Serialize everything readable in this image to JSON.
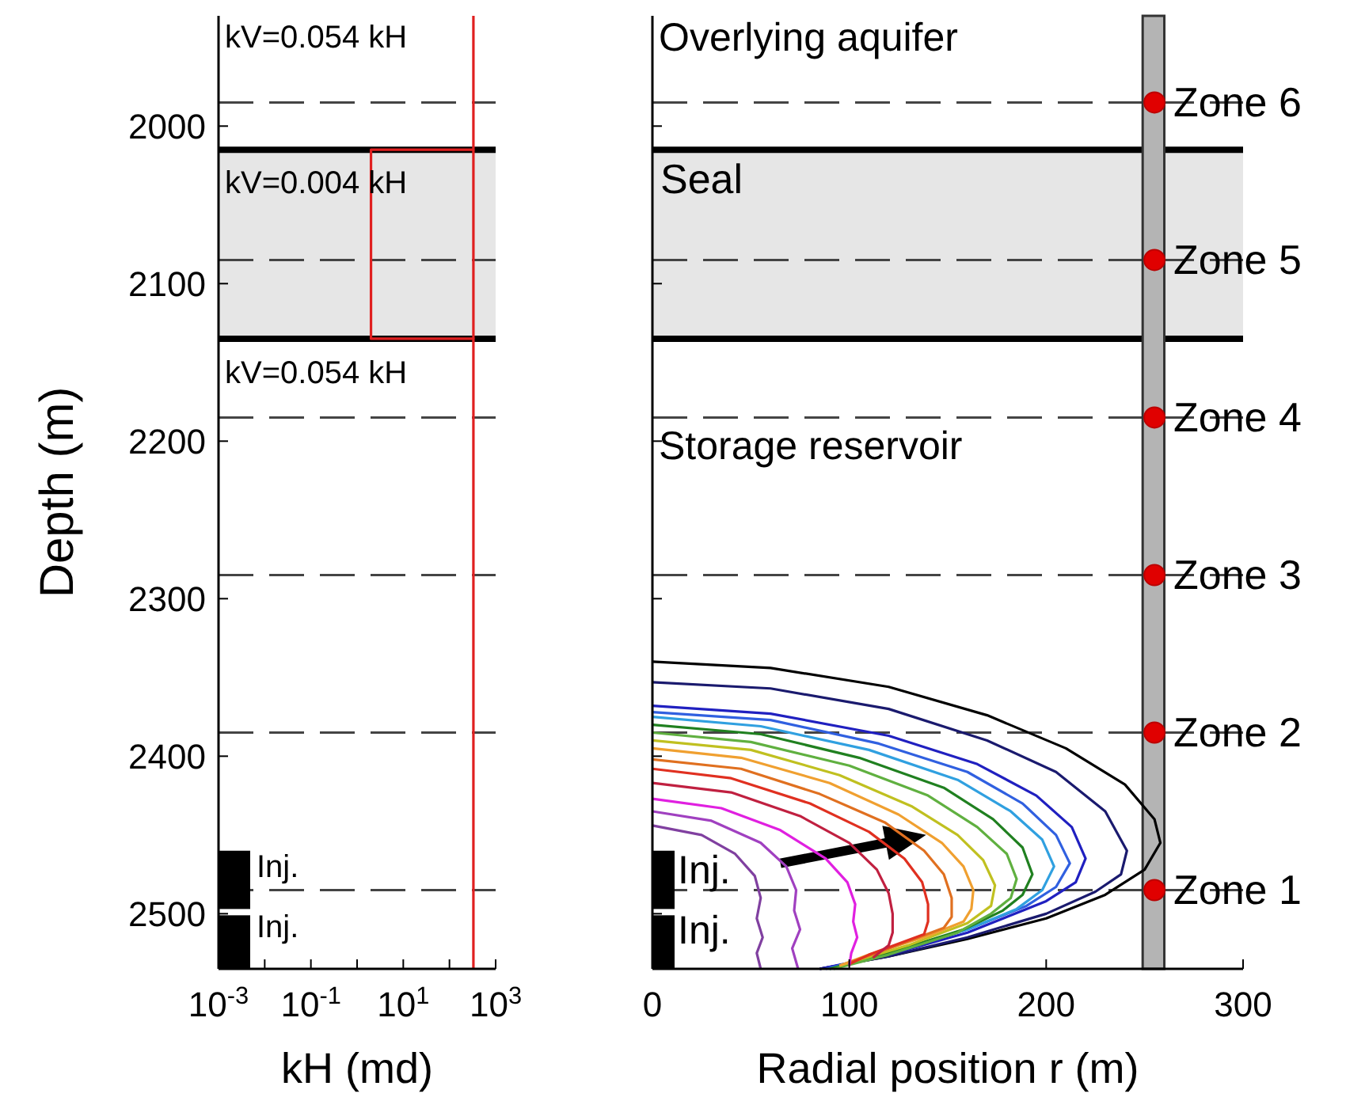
{
  "chart_data": [
    {
      "type": "line",
      "ylabel": "Depth (m)",
      "xlabel": "kH (md)",
      "log": "x",
      "grid": false,
      "xlim": [
        0.001,
        1000
      ],
      "xticks": [
        {
          "value": 0.001,
          "label": "10$^{-3}$"
        },
        {
          "value": 0.01,
          "label": null
        },
        {
          "value": 0.1,
          "label": "10$^{-1}$"
        },
        {
          "value": 1,
          "label": null
        },
        {
          "value": 10,
          "label": "10$^{1}$"
        },
        {
          "value": 100,
          "label": null
        },
        {
          "value": 1000,
          "label": "10$^{3}$"
        }
      ],
      "ylim": [
        2535,
        1930
      ],
      "yticks": [
        2000,
        2100,
        2200,
        2300,
        2400,
        2500
      ],
      "series": [
        {
          "color": "#e02020",
          "x": [
            330,
            330,
            2,
            2,
            330,
            330
          ],
          "values": [
            1930,
            2015,
            2015,
            2135,
            2135,
            2535
          ]
        },
        {
          "color": "#e02020",
          "x": [
            330,
            330
          ],
          "values": [
            2015,
            2135
          ]
        }
      ],
      "bands": [
        {
          "axis": "y",
          "from": 2015,
          "to": 2135,
          "color": "#e6e6e6"
        }
      ],
      "ref_lines": [
        {
          "axis": "y",
          "value": 2015,
          "color": "#000000",
          "line_style": "solid"
        },
        {
          "axis": "y",
          "value": 2135,
          "color": "#000000",
          "line_style": "solid"
        },
        {
          "axis": "y",
          "value": 1985,
          "line_style": "dashed"
        },
        {
          "axis": "y",
          "value": 2085,
          "line_style": "dashed"
        },
        {
          "axis": "y",
          "value": 2185,
          "line_style": "dashed"
        },
        {
          "axis": "y",
          "value": 2285,
          "line_style": "dashed"
        },
        {
          "axis": "y",
          "value": 2385,
          "line_style": "dashed"
        },
        {
          "axis": "y",
          "value": 2485,
          "line_style": "dashed"
        }
      ],
      "annotations": [
        "kV=0.054 kH",
        "kV=0.004 kH",
        "kV=0.054 kH",
        "Inj.",
        "Inj."
      ]
    },
    {
      "type": "line",
      "xlabel": "Radial position r (m)",
      "grid": false,
      "tick_labels": "x",
      "xlim": [
        0,
        300
      ],
      "xticks": [
        0,
        100,
        200,
        300
      ],
      "ylim": [
        2535,
        1930
      ],
      "yticks": [
        2000,
        2100,
        2200,
        2300,
        2400,
        2500
      ],
      "series": [
        {
          "color": "#000000",
          "x": [
            0,
            60,
            120,
            170,
            210,
            240,
            255,
            258,
            250,
            230,
            200,
            160,
            120,
            85
          ],
          "values": [
            2340,
            2344,
            2356,
            2374,
            2395,
            2418,
            2440,
            2455,
            2472,
            2488,
            2503,
            2516,
            2527,
            2535
          ]
        },
        {
          "color": "#1a1a6e",
          "x": [
            0,
            60,
            120,
            170,
            205,
            230,
            241,
            238,
            225,
            200,
            160,
            120,
            85
          ],
          "values": [
            2353,
            2357,
            2370,
            2390,
            2410,
            2435,
            2460,
            2475,
            2486,
            2500,
            2515,
            2527,
            2535
          ]
        },
        {
          "color": "#2020c0",
          "x": [
            0,
            60,
            120,
            165,
            195,
            213,
            220,
            215,
            200,
            160,
            120,
            85
          ],
          "values": [
            2368,
            2373,
            2387,
            2405,
            2425,
            2445,
            2465,
            2480,
            2492,
            2512,
            2526,
            2535
          ]
        },
        {
          "color": "#3060e0",
          "x": [
            0,
            60,
            115,
            160,
            188,
            205,
            212,
            205,
            190,
            160,
            120,
            88
          ],
          "values": [
            2372,
            2377,
            2392,
            2410,
            2430,
            2450,
            2468,
            2483,
            2495,
            2510,
            2525,
            2535
          ]
        },
        {
          "color": "#30a0e0",
          "x": [
            0,
            55,
            110,
            155,
            182,
            198,
            204,
            198,
            185,
            160,
            120,
            90
          ],
          "values": [
            2375,
            2381,
            2396,
            2415,
            2435,
            2453,
            2470,
            2485,
            2497,
            2510,
            2525,
            2535
          ]
        },
        {
          "color": "#208020",
          "x": [
            0,
            55,
            105,
            148,
            173,
            188,
            193,
            188,
            178,
            158,
            120,
            90
          ],
          "values": [
            2380,
            2386,
            2401,
            2420,
            2440,
            2458,
            2475,
            2488,
            2498,
            2510,
            2525,
            2535
          ]
        },
        {
          "color": "#60b040",
          "x": [
            0,
            50,
            100,
            140,
            165,
            180,
            185,
            182,
            172,
            155,
            120,
            92
          ],
          "values": [
            2385,
            2391,
            2406,
            2425,
            2445,
            2462,
            2478,
            2490,
            2500,
            2512,
            2526,
            2535
          ]
        },
        {
          "color": "#c0c020",
          "x": [
            0,
            50,
            95,
            132,
            155,
            168,
            174,
            172,
            160,
            130,
            95
          ],
          "values": [
            2390,
            2396,
            2412,
            2432,
            2450,
            2466,
            2482,
            2495,
            2506,
            2520,
            2533
          ]
        },
        {
          "color": "#f0a030",
          "x": [
            0,
            45,
            90,
            125,
            147,
            158,
            163,
            162,
            158,
            140,
            110,
            95
          ],
          "values": [
            2395,
            2401,
            2417,
            2437,
            2455,
            2470,
            2485,
            2497,
            2505,
            2514,
            2526,
            2533
          ]
        },
        {
          "color": "#e07020",
          "x": [
            0,
            45,
            85,
            118,
            138,
            148,
            152,
            152,
            148,
            120,
            100
          ],
          "values": [
            2402,
            2408,
            2424,
            2442,
            2460,
            2475,
            2490,
            2502,
            2509,
            2522,
            2531
          ]
        },
        {
          "color": "#e03020",
          "x": [
            0,
            40,
            80,
            110,
            128,
            137,
            140,
            140,
            138,
            110,
            100
          ],
          "values": [
            2408,
            2414,
            2430,
            2448,
            2465,
            2480,
            2494,
            2505,
            2513,
            2526,
            2532
          ]
        },
        {
          "color": "#c02040",
          "x": [
            0,
            40,
            75,
            100,
            114,
            120,
            122,
            122,
            120,
            112
          ],
          "values": [
            2417,
            2423,
            2438,
            2455,
            2472,
            2487,
            2500,
            2512,
            2520,
            2528
          ]
        },
        {
          "color": "#e020e0",
          "x": [
            0,
            35,
            65,
            88,
            99,
            103,
            102,
            104,
            101,
            100
          ],
          "values": [
            2427,
            2433,
            2447,
            2465,
            2480,
            2494,
            2505,
            2515,
            2525,
            2533
          ]
        },
        {
          "color": "#a040c0",
          "x": [
            0,
            30,
            55,
            68,
            73,
            72,
            75,
            71,
            74
          ],
          "values": [
            2435,
            2441,
            2455,
            2470,
            2485,
            2498,
            2510,
            2522,
            2535
          ]
        },
        {
          "color": "#8040a0",
          "x": [
            0,
            25,
            42,
            52,
            55,
            53,
            56,
            53,
            55
          ],
          "values": [
            2444,
            2450,
            2462,
            2476,
            2490,
            2503,
            2515,
            2525,
            2535
          ]
        },
        {
          "type": "scatter",
          "color": "#e00000",
          "marker": "circle",
          "x": [
            255,
            255,
            255,
            255,
            255,
            255
          ],
          "values": [
            1985,
            2085,
            2185,
            2285,
            2385,
            2485
          ]
        }
      ],
      "bands": [
        {
          "axis": "y",
          "from": 2015,
          "to": 2135,
          "label": "Seal",
          "color": "#e6e6e6"
        },
        {
          "axis": "x",
          "from": 249,
          "to": 260,
          "color": "#b4b4b4"
        }
      ],
      "ref_lines": [
        {
          "axis": "y",
          "value": 2015,
          "color": "#000000",
          "line_style": "solid"
        },
        {
          "axis": "y",
          "value": 2135,
          "color": "#000000",
          "line_style": "solid"
        },
        {
          "axis": "y",
          "value": 1985,
          "label": "Zone 6",
          "line_style": "dashed"
        },
        {
          "axis": "y",
          "value": 2085,
          "label": "Zone 5",
          "line_style": "dashed"
        },
        {
          "axis": "y",
          "value": 2185,
          "label": "Zone 4",
          "line_style": "dashed"
        },
        {
          "axis": "y",
          "value": 2285,
          "label": "Zone 3",
          "line_style": "dashed"
        },
        {
          "axis": "y",
          "value": 2385,
          "label": "Zone 2",
          "line_style": "dashed"
        },
        {
          "axis": "y",
          "value": 2485,
          "label": "Zone 1",
          "line_style": "dashed"
        }
      ],
      "annotations": [
        "Overlying aquifer",
        "Storage reservoir",
        "Inj.",
        "Inj."
      ]
    }
  ]
}
